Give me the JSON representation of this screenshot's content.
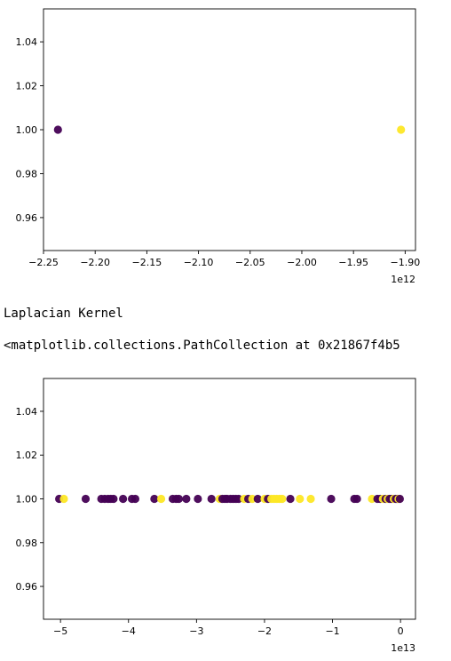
{
  "notebook_output": {
    "stdout_text": "Laplacian Kernel",
    "repr_text": "<matplotlib.collections.PathCollection at 0x21867f4b5"
  },
  "colors": {
    "purple": "#440154",
    "yellow": "#fde725"
  },
  "chart_data": [
    {
      "type": "scatter",
      "title": "",
      "xlabel": "",
      "ylabel": "",
      "offset_label": "1e12",
      "xlim": [
        -2.25,
        -1.89
      ],
      "ylim": [
        0.945,
        1.055
      ],
      "xticks": [
        -2.25,
        -2.2,
        -2.15,
        -2.1,
        -2.05,
        -2.0,
        -1.95,
        -1.9
      ],
      "xtick_labels": [
        "−2.25",
        "−2.20",
        "−2.15",
        "−2.10",
        "−2.05",
        "−2.00",
        "−1.95",
        "−1.90"
      ],
      "yticks": [
        0.96,
        0.98,
        1.0,
        1.02,
        1.04
      ],
      "ytick_labels": [
        "0.96",
        "0.98",
        "1.00",
        "1.02",
        "1.04"
      ],
      "points": [
        {
          "x": -2.236,
          "y": 1.0,
          "color": "#440154"
        },
        {
          "x": -1.904,
          "y": 1.0,
          "color": "#fde725"
        }
      ]
    },
    {
      "type": "scatter",
      "title": "",
      "xlabel": "",
      "ylabel": "",
      "offset_label": "1e13",
      "xlim": [
        -5.25,
        0.22
      ],
      "ylim": [
        0.945,
        1.055
      ],
      "xticks": [
        -5,
        -4,
        -3,
        -2,
        -1,
        0
      ],
      "xtick_labels": [
        "−5",
        "−4",
        "−3",
        "−2",
        "−1",
        "0"
      ],
      "yticks": [
        0.96,
        0.98,
        1.0,
        1.02,
        1.04
      ],
      "ytick_labels": [
        "0.96",
        "0.98",
        "1.00",
        "1.02",
        "1.04"
      ],
      "points": [
        {
          "x": -5.02,
          "y": 1.0,
          "color": "#440154"
        },
        {
          "x": -4.95,
          "y": 1.0,
          "color": "#fde725"
        },
        {
          "x": -4.63,
          "y": 1.0,
          "color": "#440154"
        },
        {
          "x": -4.4,
          "y": 1.0,
          "color": "#440154"
        },
        {
          "x": -4.35,
          "y": 1.0,
          "color": "#440154"
        },
        {
          "x": -4.3,
          "y": 1.0,
          "color": "#440154"
        },
        {
          "x": -4.26,
          "y": 1.0,
          "color": "#440154"
        },
        {
          "x": -4.22,
          "y": 1.0,
          "color": "#440154"
        },
        {
          "x": -4.08,
          "y": 1.0,
          "color": "#440154"
        },
        {
          "x": -3.95,
          "y": 1.0,
          "color": "#440154"
        },
        {
          "x": -3.9,
          "y": 1.0,
          "color": "#440154"
        },
        {
          "x": -3.62,
          "y": 1.0,
          "color": "#440154"
        },
        {
          "x": -3.52,
          "y": 1.0,
          "color": "#fde725"
        },
        {
          "x": -3.35,
          "y": 1.0,
          "color": "#440154"
        },
        {
          "x": -3.3,
          "y": 1.0,
          "color": "#440154"
        },
        {
          "x": -3.26,
          "y": 1.0,
          "color": "#440154"
        },
        {
          "x": -3.15,
          "y": 1.0,
          "color": "#440154"
        },
        {
          "x": -2.98,
          "y": 1.0,
          "color": "#440154"
        },
        {
          "x": -2.78,
          "y": 1.0,
          "color": "#440154"
        },
        {
          "x": -2.66,
          "y": 1.0,
          "color": "#fde725"
        },
        {
          "x": -2.62,
          "y": 1.0,
          "color": "#440154"
        },
        {
          "x": -2.58,
          "y": 1.0,
          "color": "#440154"
        },
        {
          "x": -2.55,
          "y": 1.0,
          "color": "#440154"
        },
        {
          "x": -2.5,
          "y": 1.0,
          "color": "#440154"
        },
        {
          "x": -2.46,
          "y": 1.0,
          "color": "#440154"
        },
        {
          "x": -2.42,
          "y": 1.0,
          "color": "#440154"
        },
        {
          "x": -2.38,
          "y": 1.0,
          "color": "#440154"
        },
        {
          "x": -2.3,
          "y": 1.0,
          "color": "#fde725"
        },
        {
          "x": -2.24,
          "y": 1.0,
          "color": "#440154"
        },
        {
          "x": -2.18,
          "y": 1.0,
          "color": "#fde725"
        },
        {
          "x": -2.1,
          "y": 1.0,
          "color": "#440154"
        },
        {
          "x": -2.0,
          "y": 1.0,
          "color": "#fde725"
        },
        {
          "x": -1.95,
          "y": 1.0,
          "color": "#440154"
        },
        {
          "x": -1.9,
          "y": 1.0,
          "color": "#fde725"
        },
        {
          "x": -1.86,
          "y": 1.0,
          "color": "#fde725"
        },
        {
          "x": -1.82,
          "y": 1.0,
          "color": "#fde725"
        },
        {
          "x": -1.78,
          "y": 1.0,
          "color": "#fde725"
        },
        {
          "x": -1.74,
          "y": 1.0,
          "color": "#fde725"
        },
        {
          "x": -1.62,
          "y": 1.0,
          "color": "#440154"
        },
        {
          "x": -1.48,
          "y": 1.0,
          "color": "#fde725"
        },
        {
          "x": -1.32,
          "y": 1.0,
          "color": "#fde725"
        },
        {
          "x": -1.02,
          "y": 1.0,
          "color": "#440154"
        },
        {
          "x": -0.68,
          "y": 1.0,
          "color": "#440154"
        },
        {
          "x": -0.64,
          "y": 1.0,
          "color": "#440154"
        },
        {
          "x": -0.42,
          "y": 1.0,
          "color": "#fde725"
        },
        {
          "x": -0.34,
          "y": 1.0,
          "color": "#440154"
        },
        {
          "x": -0.3,
          "y": 1.0,
          "color": "#440154"
        },
        {
          "x": -0.26,
          "y": 1.0,
          "color": "#fde725"
        },
        {
          "x": -0.22,
          "y": 1.0,
          "color": "#440154"
        },
        {
          "x": -0.19,
          "y": 1.0,
          "color": "#fde725"
        },
        {
          "x": -0.16,
          "y": 1.0,
          "color": "#440154"
        },
        {
          "x": -0.13,
          "y": 1.0,
          "color": "#440154"
        },
        {
          "x": -0.1,
          "y": 1.0,
          "color": "#fde725"
        },
        {
          "x": -0.07,
          "y": 1.0,
          "color": "#440154"
        },
        {
          "x": -0.05,
          "y": 1.0,
          "color": "#440154"
        },
        {
          "x": -0.03,
          "y": 1.0,
          "color": "#fde725"
        },
        {
          "x": -0.01,
          "y": 1.0,
          "color": "#440154"
        }
      ]
    }
  ]
}
